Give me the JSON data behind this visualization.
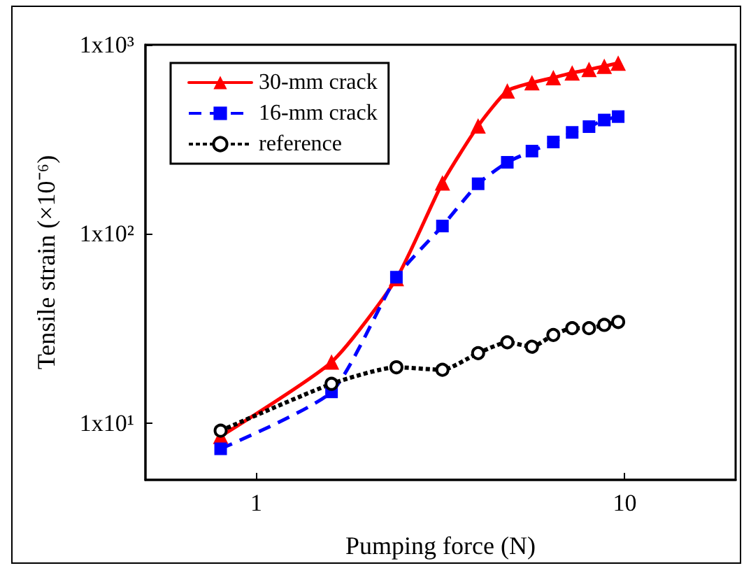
{
  "chart_data": {
    "type": "line",
    "xlabel": "Pumping force (N)",
    "ylabel": "Tensile strain (×10⁻⁶)",
    "log": "xy",
    "grid": false,
    "legend": "top left",
    "x": [
      0.8,
      1.6,
      2.4,
      3.2,
      4.0,
      4.8,
      5.6,
      6.4,
      7.2,
      8.0,
      8.8,
      9.6
    ],
    "xlim": [
      0.5,
      20
    ],
    "xticks": [
      1,
      10
    ],
    "ylim": [
      5,
      1000
    ],
    "yticks": [
      {
        "value": 10,
        "label": "1x10¹"
      },
      {
        "value": 100,
        "label": "1x10²"
      },
      {
        "value": 1000,
        "label": "1x10³"
      }
    ],
    "series": [
      {
        "name": "30-mm crack",
        "color": "#ff0000",
        "marker": "triangle",
        "line_style": "solid",
        "values": [
          8.5,
          21,
          58,
          186,
          372,
          570,
          630,
          670,
          710,
          740,
          770,
          800
        ]
      },
      {
        "name": "16-mm crack",
        "color": "#0000ff",
        "marker": "square",
        "line_style": "dashed",
        "values": [
          7.3,
          14.6,
          59,
          110,
          184,
          239,
          274,
          306,
          344,
          369,
          400,
          417
        ]
      },
      {
        "name": "reference",
        "color": "#000000",
        "marker": "circle",
        "line_style": "dotted",
        "values": [
          9.1,
          16.1,
          19.7,
          19.1,
          23.4,
          26.7,
          25.3,
          29.2,
          31.7,
          31.7,
          33,
          34.2
        ]
      }
    ]
  }
}
